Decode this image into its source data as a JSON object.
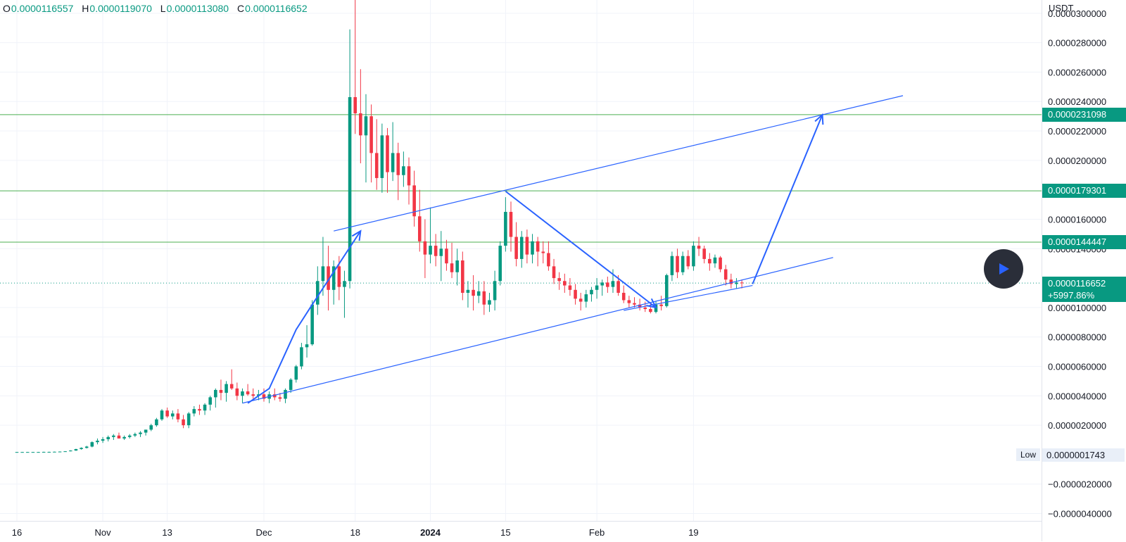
{
  "ohlc": {
    "o_label": "O",
    "o_value": "0.0000116557",
    "h_label": "H",
    "h_value": "0.0000119070",
    "l_label": "L",
    "l_value": "0.0000113080",
    "c_label": "C",
    "c_value": "0.0000116652"
  },
  "price_axis": {
    "unit": "USDT",
    "ticks": [
      "0.0000300000",
      "0.0000280000",
      "0.0000260000",
      "0.0000240000",
      "0.0000220000",
      "0.0000200000",
      "0.0000160000",
      "0.0000140000",
      "0.0000100000",
      "0.0000080000",
      "0.0000060000",
      "0.0000040000",
      "0.0000020000",
      "−0.0000020000",
      "−0.0000040000"
    ],
    "tick_values": [
      3e-05,
      2.8e-05,
      2.6e-05,
      2.4e-05,
      2.2e-05,
      2e-05,
      1.6e-05,
      1.4e-05,
      1e-05,
      8e-06,
      6e-06,
      4e-06,
      2e-06,
      -2e-06,
      -4e-06
    ]
  },
  "levels": [
    {
      "label": "0.0000231098",
      "value": 2.31098e-05
    },
    {
      "label": "0.0000179301",
      "value": 1.79301e-05
    },
    {
      "label": "0.0000144447",
      "value": 1.44447e-05
    }
  ],
  "last_price": {
    "label": "0.0000116652",
    "change": "+5997.86%",
    "value": 1.16652e-05
  },
  "low": {
    "label": "Low",
    "value_text": "0.0000001743"
  },
  "time_axis": [
    "16",
    "Nov",
    "13",
    "Dec",
    "18",
    "2024",
    "15",
    "Feb",
    "19"
  ],
  "play_icon": "play-icon",
  "colors": {
    "up": "#089981",
    "down": "#f23645",
    "level": "#4caf50",
    "drawing": "#2962ff",
    "tag": "#089981"
  },
  "chart_data": {
    "type": "candlestick",
    "title": "",
    "ylabel": "USDT",
    "ylim": [
      -4.5e-06,
      3.09e-05
    ],
    "x_ticks": [
      {
        "label": "16",
        "day": 0
      },
      {
        "label": "Nov",
        "day": 16
      },
      {
        "label": "13",
        "day": 28
      },
      {
        "label": "Dec",
        "day": 46
      },
      {
        "label": "18",
        "day": 63
      },
      {
        "label": "2024",
        "day": 77
      },
      {
        "label": "15",
        "day": 91
      },
      {
        "label": "Feb",
        "day": 108
      },
      {
        "label": "19",
        "day": 126
      }
    ],
    "candles_start": "2023-10-16",
    "candles": [
      [
        1.8e-07,
        1.9e-07,
        1.7e-07,
        1.8e-07
      ],
      [
        1.8e-07,
        1.9e-07,
        1.7e-07,
        1.8e-07
      ],
      [
        1.8e-07,
        1.9e-07,
        1.7e-07,
        1.8e-07
      ],
      [
        1.8e-07,
        1.9e-07,
        1.7e-07,
        1.8e-07
      ],
      [
        1.8e-07,
        1.9e-07,
        1.7e-07,
        1.8e-07
      ],
      [
        1.8e-07,
        2e-07,
        1.7e-07,
        1.9e-07
      ],
      [
        1.9e-07,
        2e-07,
        1.8e-07,
        1.9e-07
      ],
      [
        1.9e-07,
        2.1e-07,
        1.8e-07,
        2e-07
      ],
      [
        2e-07,
        2.2e-07,
        1.9e-07,
        2.1e-07
      ],
      [
        2.1e-07,
        2.4e-07,
        2e-07,
        2.3e-07
      ],
      [
        2.3e-07,
        3e-07,
        2.2e-07,
        2.8e-07
      ],
      [
        2.8e-07,
        4e-07,
        2.6e-07,
        3.8e-07
      ],
      [
        3.8e-07,
        5e-07,
        3.4e-07,
        4.6e-07
      ],
      [
        4.6e-07,
        6e-07,
        4.2e-07,
        5.5e-07
      ],
      [
        5.5e-07,
        9e-07,
        5e-07,
        8.5e-07
      ],
      [
        8.5e-07,
        1.1e-06,
        7e-07,
        9.5e-07
      ],
      [
        9.5e-07,
        1.2e-06,
        8e-07,
        1.05e-06
      ],
      [
        1.05e-06,
        1.3e-06,
        9e-07,
        1.2e-06
      ],
      [
        1.2e-06,
        1.4e-06,
        1e-06,
        1.3e-06
      ],
      [
        1.3e-06,
        1.5e-06,
        1.1e-06,
        1.1e-06
      ],
      [
        1.1e-06,
        1.3e-06,
        1e-06,
        1.2e-06
      ],
      [
        1.2e-06,
        1.4e-06,
        1.1e-06,
        1.3e-06
      ],
      [
        1.3e-06,
        1.5e-06,
        1.2e-06,
        1.4e-06
      ],
      [
        1.4e-06,
        1.6e-06,
        1.2e-06,
        1.5e-06
      ],
      [
        1.5e-06,
        1.7e-06,
        1.3e-06,
        1.7e-06
      ],
      [
        1.7e-06,
        2.1e-06,
        1.6e-06,
        2e-06
      ],
      [
        2e-06,
        2.5e-06,
        1.9e-06,
        2.4e-06
      ],
      [
        2.4e-06,
        3.1e-06,
        2.3e-06,
        3e-06
      ],
      [
        3e-06,
        3.2e-06,
        2.5e-06,
        2.6e-06
      ],
      [
        2.6e-06,
        3e-06,
        2.4e-06,
        2.8e-06
      ],
      [
        2.8e-06,
        3.1e-06,
        2.2e-06,
        2.4e-06
      ],
      [
        2.4e-06,
        2.7e-06,
        1.8e-06,
        2e-06
      ],
      [
        2e-06,
        2.9e-06,
        1.8e-06,
        2.8e-06
      ],
      [
        2.8e-06,
        3.3e-06,
        2.6e-06,
        3.1e-06
      ],
      [
        3.1e-06,
        3.4e-06,
        2.7e-06,
        3e-06
      ],
      [
        3e-06,
        3.5e-06,
        2.7e-06,
        3.4e-06
      ],
      [
        3.4e-06,
        4e-06,
        3e-06,
        3.9e-06
      ],
      [
        3.9e-06,
        4.5e-06,
        3.2e-06,
        4.4e-06
      ],
      [
        4.4e-06,
        5.1e-06,
        3.7e-06,
        4.2e-06
      ],
      [
        4.2e-06,
        5e-06,
        3.6e-06,
        4.8e-06
      ],
      [
        4.8e-06,
        5.8e-06,
        4.4e-06,
        4.5e-06
      ],
      [
        4.5e-06,
        4.9e-06,
        3.7e-06,
        4e-06
      ],
      [
        4e-06,
        4.5e-06,
        3.5e-06,
        4.3e-06
      ],
      [
        4.3e-06,
        4.8e-06,
        4e-06,
        4.1e-06
      ],
      [
        4.1e-06,
        4.5e-06,
        3.8e-06,
        4e-06
      ],
      [
        4e-06,
        4.4e-06,
        3.7e-06,
        4.1e-06
      ],
      [
        4.1e-06,
        4.5e-06,
        3.6e-06,
        3.8e-06
      ],
      [
        3.8e-06,
        4.3e-06,
        3.5e-06,
        4.1e-06
      ],
      [
        4.1e-06,
        4.5e-06,
        3.7e-06,
        3.9e-06
      ],
      [
        3.9e-06,
        4.2e-06,
        3.6e-06,
        3.8e-06
      ],
      [
        3.8e-06,
        4.5e-06,
        3.5e-06,
        4.4e-06
      ],
      [
        4.4e-06,
        5.2e-06,
        4.2e-06,
        5.1e-06
      ],
      [
        5.1e-06,
        6.1e-06,
        4.9e-06,
        6e-06
      ],
      [
        6e-06,
        7.6e-06,
        5.8e-06,
        7.3e-06
      ],
      [
        7.3e-06,
        8.8e-06,
        6.6e-06,
        7.5e-06
      ],
      [
        7.5e-06,
        1.05e-05,
        7.4e-06,
        1.02e-05
      ],
      [
        1.02e-05,
        1.28e-05,
        9.5e-06,
        1.18e-05
      ],
      [
        1.18e-05,
        1.48e-05,
        1.08e-05,
        1.28e-05
      ],
      [
        1.28e-05,
        1.42e-05,
        9.8e-06,
        1.12e-05
      ],
      [
        1.12e-05,
        1.32e-05,
        1.02e-05,
        1.28e-05
      ],
      [
        1.28e-05,
        1.35e-05,
        1.05e-05,
        1.14e-05
      ],
      [
        1.14e-05,
        1.25e-05,
        9.3e-06,
        1.18e-05
      ],
      [
        1.18e-05,
        2.89e-05,
        1.13e-05,
        2.43e-05
      ],
      [
        2.43e-05,
        3.09e-05,
        2.18e-05,
        2.32e-05
      ],
      [
        2.32e-05,
        2.62e-05,
        1.98e-05,
        2.17e-05
      ],
      [
        2.17e-05,
        2.45e-05,
        1.85e-05,
        2.3e-05
      ],
      [
        2.3e-05,
        2.38e-05,
        1.85e-05,
        2.05e-05
      ],
      [
        2.05e-05,
        2.28e-05,
        1.8e-05,
        1.88e-05
      ],
      [
        1.88e-05,
        2.25e-05,
        1.78e-05,
        2.17e-05
      ],
      [
        2.17e-05,
        2.22e-05,
        1.78e-05,
        1.92e-05
      ],
      [
        1.92e-05,
        2.26e-05,
        1.86e-05,
        2.05e-05
      ],
      [
        2.05e-05,
        2.12e-05,
        1.73e-05,
        1.9e-05
      ],
      [
        1.9e-05,
        2.06e-05,
        1.82e-05,
        1.96e-05
      ],
      [
        1.96e-05,
        2.02e-05,
        1.7e-05,
        1.83e-05
      ],
      [
        1.83e-05,
        1.93e-05,
        1.55e-05,
        1.62e-05
      ],
      [
        1.62e-05,
        1.8e-05,
        1.38e-05,
        1.45e-05
      ],
      [
        1.45e-05,
        1.6e-05,
        1.2e-05,
        1.36e-05
      ],
      [
        1.36e-05,
        1.68e-05,
        1.3e-05,
        1.42e-05
      ],
      [
        1.42e-05,
        1.5e-05,
        1.28e-05,
        1.35e-05
      ],
      [
        1.35e-05,
        1.52e-05,
        1.18e-05,
        1.4e-05
      ],
      [
        1.4e-05,
        1.46e-05,
        1.25e-05,
        1.3e-05
      ],
      [
        1.3e-05,
        1.44e-05,
        1.2e-05,
        1.24e-05
      ],
      [
        1.24e-05,
        1.4e-05,
        1.15e-05,
        1.32e-05
      ],
      [
        1.32e-05,
        1.38e-05,
        1.05e-05,
        1.1e-05
      ],
      [
        1.1e-05,
        1.18e-05,
        1e-05,
        1.12e-05
      ],
      [
        1.12e-05,
        1.22e-05,
        9.8e-06,
        1.08e-05
      ],
      [
        1.08e-05,
        1.18e-05,
        1.03e-05,
        1.11e-05
      ],
      [
        1.11e-05,
        1.18e-05,
        9.5e-06,
        1.02e-05
      ],
      [
        1.02e-05,
        1.1e-05,
        9.7e-06,
        1.05e-05
      ],
      [
        1.05e-05,
        1.25e-05,
        9.8e-06,
        1.18e-05
      ],
      [
        1.18e-05,
        1.45e-05,
        1.15e-05,
        1.42e-05
      ],
      [
        1.42e-05,
        1.75e-05,
        1.38e-05,
        1.65e-05
      ],
      [
        1.65e-05,
        1.72e-05,
        1.38e-05,
        1.48e-05
      ],
      [
        1.48e-05,
        1.58e-05,
        1.28e-05,
        1.33e-05
      ],
      [
        1.33e-05,
        1.52e-05,
        1.27e-05,
        1.48e-05
      ],
      [
        1.48e-05,
        1.53e-05,
        1.3e-05,
        1.36e-05
      ],
      [
        1.36e-05,
        1.5e-05,
        1.3e-05,
        1.45e-05
      ],
      [
        1.45e-05,
        1.48e-05,
        1.28e-05,
        1.38e-05
      ],
      [
        1.38e-05,
        1.45e-05,
        1.3e-05,
        1.37e-05
      ],
      [
        1.37e-05,
        1.45e-05,
        1.25e-05,
        1.28e-05
      ],
      [
        1.28e-05,
        1.33e-05,
        1.16e-05,
        1.2e-05
      ],
      [
        1.2e-05,
        1.24e-05,
        1.12e-05,
        1.18e-05
      ],
      [
        1.18e-05,
        1.23e-05,
        1.1e-05,
        1.15e-05
      ],
      [
        1.15e-05,
        1.2e-05,
        1.08e-05,
        1.12e-05
      ],
      [
        1.12e-05,
        1.16e-05,
        1.02e-05,
        1.06e-05
      ],
      [
        1.06e-05,
        1.1e-05,
        9.8e-06,
        1.04e-05
      ],
      [
        1.04e-05,
        1.12e-05,
        1e-05,
        1.09e-05
      ],
      [
        1.09e-05,
        1.14e-05,
        1.04e-05,
        1.12e-05
      ],
      [
        1.12e-05,
        1.2e-05,
        1.06e-05,
        1.15e-05
      ],
      [
        1.15e-05,
        1.19e-05,
        1.08e-05,
        1.17e-05
      ],
      [
        1.17e-05,
        1.21e-05,
        1.1e-05,
        1.14e-05
      ],
      [
        1.14e-05,
        1.26e-05,
        1.1e-05,
        1.18e-05
      ],
      [
        1.18e-05,
        1.22e-05,
        1.08e-05,
        1.1e-05
      ],
      [
        1.1e-05,
        1.15e-05,
        1.03e-05,
        1.05e-05
      ],
      [
        1.05e-05,
        1.08e-05,
        1e-05,
        1.03e-05
      ],
      [
        1.03e-05,
        1.07e-05,
        1e-05,
        1.02e-05
      ],
      [
        1.02e-05,
        1.06e-05,
        9.8e-06,
        1e-05
      ],
      [
        1e-05,
        1.04e-05,
        9.7e-06,
        9.9e-06
      ],
      [
        9.9e-06,
        1.03e-05,
        9.6e-06,
        9.7e-06
      ],
      [
        9.7e-06,
        1.04e-05,
        9.6e-06,
        1.02e-05
      ],
      [
        1.02e-05,
        1.08e-05,
        9.8e-06,
        1.01e-05
      ],
      [
        1.01e-05,
        1.23e-05,
        1e-05,
        1.22e-05
      ],
      [
        1.22e-05,
        1.38e-05,
        1.18e-05,
        1.35e-05
      ],
      [
        1.35e-05,
        1.4e-05,
        1.2e-05,
        1.24e-05
      ],
      [
        1.24e-05,
        1.38e-05,
        1.22e-05,
        1.35e-05
      ],
      [
        1.35e-05,
        1.39e-05,
        1.26e-05,
        1.28e-05
      ],
      [
        1.28e-05,
        1.45e-05,
        1.25e-05,
        1.42e-05
      ],
      [
        1.42e-05,
        1.48e-05,
        1.35e-05,
        1.4e-05
      ],
      [
        1.4e-05,
        1.42e-05,
        1.3e-05,
        1.33e-05
      ],
      [
        1.33e-05,
        1.37e-05,
        1.25e-05,
        1.3e-05
      ],
      [
        1.3e-05,
        1.36e-05,
        1.27e-05,
        1.34e-05
      ],
      [
        1.34e-05,
        1.35e-05,
        1.24e-05,
        1.26e-05
      ],
      [
        1.26e-05,
        1.29e-05,
        1.15e-05,
        1.19e-05
      ],
      [
        1.19e-05,
        1.23e-05,
        1.13e-05,
        1.16e-05
      ],
      [
        1.16e-05,
        1.2e-05,
        1.13e-05,
        1.17e-05
      ],
      [
        1.17e-05,
        1.19e-05,
        1.13e-05,
        1.167e-05
      ]
    ],
    "trendlines": [
      {
        "name": "upper-channel",
        "from": {
          "day": 59,
          "price": 1.52e-05
        },
        "to": {
          "day": 165,
          "price": 2.44e-05
        }
      },
      {
        "name": "lower-channel",
        "from": {
          "day": 42,
          "price": 3.5e-06
        },
        "to": {
          "day": 152,
          "price": 1.34e-05
        }
      },
      {
        "name": "support-short",
        "from": {
          "day": 113,
          "price": 9.8e-06
        },
        "to": {
          "day": 137,
          "price": 1.15e-05
        }
      }
    ],
    "arrows": [
      {
        "name": "rally-arrow",
        "path": [
          {
            "day": 43,
            "price": 3.5e-06
          },
          {
            "day": 47,
            "price": 4.5e-06
          },
          {
            "day": 52,
            "price": 8.5e-06
          },
          {
            "day": 55,
            "price": 1.02e-05
          },
          {
            "day": 64,
            "price": 1.52e-05
          }
        ]
      },
      {
        "name": "drop-arrow",
        "path": [
          {
            "day": 91,
            "price": 1.79e-05
          },
          {
            "day": 119,
            "price": 1e-05
          }
        ]
      },
      {
        "name": "target-arrow",
        "path": [
          {
            "day": 137,
            "price": 1.16e-05
          },
          {
            "day": 150,
            "price": 2.31e-05
          }
        ]
      }
    ]
  }
}
